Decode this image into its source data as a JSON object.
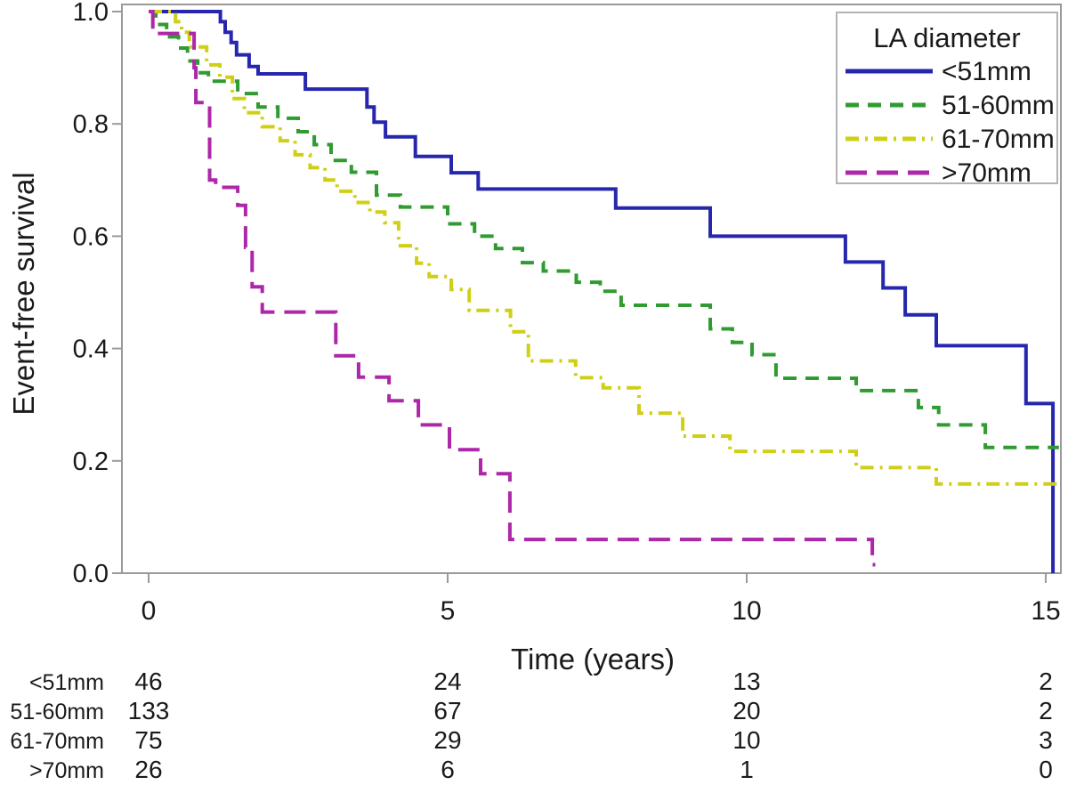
{
  "figure": {
    "background": "#ffffff",
    "frame_color": "#9a9a9a",
    "text_color": "#1a1a1a"
  },
  "axes": {
    "y_label": "Event-free survival",
    "x_label": "Time (years)",
    "y_ticks": [
      {
        "value": 0.0,
        "label": "0.0"
      },
      {
        "value": 0.2,
        "label": "0.2"
      },
      {
        "value": 0.4,
        "label": "0.4"
      },
      {
        "value": 0.6,
        "label": "0.6"
      },
      {
        "value": 0.8,
        "label": "0.8"
      },
      {
        "value": 1.0,
        "label": "1.0"
      }
    ],
    "x_ticks": [
      {
        "value": 0,
        "label": "0"
      },
      {
        "value": 5,
        "label": "5"
      },
      {
        "value": 10,
        "label": "10"
      },
      {
        "value": 15,
        "label": "15"
      }
    ],
    "x_range": [
      0,
      15.22
    ],
    "y_range": [
      0,
      1
    ],
    "grid": false
  },
  "legend": {
    "title": "LA diameter",
    "position": "top-right"
  },
  "chart_data": {
    "type": "line",
    "subtype": "kaplan-meier-step",
    "title": "",
    "xlabel": "Time (years)",
    "ylabel": "Event-free survival",
    "xlim": [
      0,
      15.22
    ],
    "ylim": [
      0,
      1
    ],
    "series": [
      {
        "name": "<51mm",
        "color": "#2727ae",
        "dash": "solid",
        "end_t": 15.12,
        "points": [
          [
            0,
            1.0
          ],
          [
            1.2,
            0.982
          ],
          [
            1.28,
            0.963
          ],
          [
            1.38,
            0.945
          ],
          [
            1.47,
            0.923
          ],
          [
            1.68,
            0.902
          ],
          [
            1.83,
            0.889
          ],
          [
            2.62,
            0.862
          ],
          [
            3.65,
            0.83
          ],
          [
            3.77,
            0.803
          ],
          [
            3.96,
            0.777
          ],
          [
            4.46,
            0.742
          ],
          [
            5.06,
            0.713
          ],
          [
            5.51,
            0.684
          ],
          [
            7.81,
            0.65
          ],
          [
            9.39,
            0.6
          ],
          [
            11.65,
            0.554
          ],
          [
            12.28,
            0.508
          ],
          [
            12.65,
            0.46
          ],
          [
            13.17,
            0.405
          ],
          [
            14.67,
            0.302
          ],
          [
            15.12,
            0.0
          ]
        ]
      },
      {
        "name": "51-60mm",
        "color": "#2f9b30",
        "dash": "dashed",
        "end_t": 15.22,
        "points": [
          [
            0,
            1.0
          ],
          [
            0.12,
            0.977
          ],
          [
            0.3,
            0.955
          ],
          [
            0.5,
            0.935
          ],
          [
            0.65,
            0.912
          ],
          [
            0.82,
            0.891
          ],
          [
            1.0,
            0.876
          ],
          [
            1.49,
            0.854
          ],
          [
            1.83,
            0.83
          ],
          [
            2.16,
            0.81
          ],
          [
            2.5,
            0.786
          ],
          [
            2.77,
            0.763
          ],
          [
            3.05,
            0.735
          ],
          [
            3.39,
            0.714
          ],
          [
            3.81,
            0.673
          ],
          [
            4.21,
            0.652
          ],
          [
            5.0,
            0.622
          ],
          [
            5.45,
            0.6
          ],
          [
            5.8,
            0.578
          ],
          [
            6.25,
            0.553
          ],
          [
            6.6,
            0.538
          ],
          [
            7.15,
            0.518
          ],
          [
            7.55,
            0.502
          ],
          [
            7.9,
            0.477
          ],
          [
            9.39,
            0.435
          ],
          [
            9.76,
            0.411
          ],
          [
            10.09,
            0.389
          ],
          [
            10.49,
            0.347
          ],
          [
            11.83,
            0.325
          ],
          [
            12.87,
            0.295
          ],
          [
            13.21,
            0.264
          ],
          [
            13.99,
            0.224
          ]
        ]
      },
      {
        "name": "61-70mm",
        "color": "#cfcf15",
        "dash": "dash-dot",
        "end_t": 15.22,
        "points": [
          [
            0,
            1.0
          ],
          [
            0.45,
            0.982
          ],
          [
            0.55,
            0.963
          ],
          [
            0.68,
            0.937
          ],
          [
            0.97,
            0.905
          ],
          [
            1.19,
            0.883
          ],
          [
            1.4,
            0.845
          ],
          [
            1.6,
            0.82
          ],
          [
            1.9,
            0.795
          ],
          [
            2.2,
            0.77
          ],
          [
            2.45,
            0.745
          ],
          [
            2.7,
            0.722
          ],
          [
            2.95,
            0.7
          ],
          [
            3.15,
            0.68
          ],
          [
            3.45,
            0.66
          ],
          [
            3.7,
            0.643
          ],
          [
            3.95,
            0.624
          ],
          [
            4.18,
            0.583
          ],
          [
            4.48,
            0.552
          ],
          [
            4.69,
            0.528
          ],
          [
            5.06,
            0.505
          ],
          [
            5.36,
            0.468
          ],
          [
            6.05,
            0.43
          ],
          [
            6.35,
            0.378
          ],
          [
            7.14,
            0.348
          ],
          [
            7.6,
            0.33
          ],
          [
            8.2,
            0.285
          ],
          [
            8.93,
            0.244
          ],
          [
            9.72,
            0.217
          ],
          [
            11.83,
            0.188
          ],
          [
            13.17,
            0.159
          ]
        ]
      },
      {
        "name": ">70mm",
        "color": "#ad28a8",
        "dash": "long-dash",
        "end_t": 12.15,
        "points": [
          [
            0,
            1.0
          ],
          [
            0.07,
            0.961
          ],
          [
            0.76,
            0.9
          ],
          [
            0.79,
            0.838
          ],
          [
            1.02,
            0.7
          ],
          [
            1.12,
            0.687
          ],
          [
            1.49,
            0.655
          ],
          [
            1.62,
            0.58
          ],
          [
            1.73,
            0.51
          ],
          [
            1.9,
            0.465
          ],
          [
            3.13,
            0.387
          ],
          [
            3.51,
            0.349
          ],
          [
            4.02,
            0.307
          ],
          [
            4.51,
            0.264
          ],
          [
            5.03,
            0.22
          ],
          [
            5.55,
            0.177
          ],
          [
            6.04,
            0.06
          ],
          [
            12.1,
            0.015
          ]
        ]
      }
    ]
  },
  "risk_table": {
    "times": [
      0,
      5,
      10,
      15
    ],
    "rows": [
      {
        "label": "<51mm",
        "counts": [
          "46",
          "24",
          "13",
          "2"
        ]
      },
      {
        "label": "51-60mm",
        "counts": [
          "133",
          "67",
          "20",
          "2"
        ]
      },
      {
        "label": "61-70mm",
        "counts": [
          "75",
          "29",
          "10",
          "3"
        ]
      },
      {
        "label": ">70mm",
        "counts": [
          "26",
          "6",
          "1",
          "0"
        ]
      }
    ]
  }
}
